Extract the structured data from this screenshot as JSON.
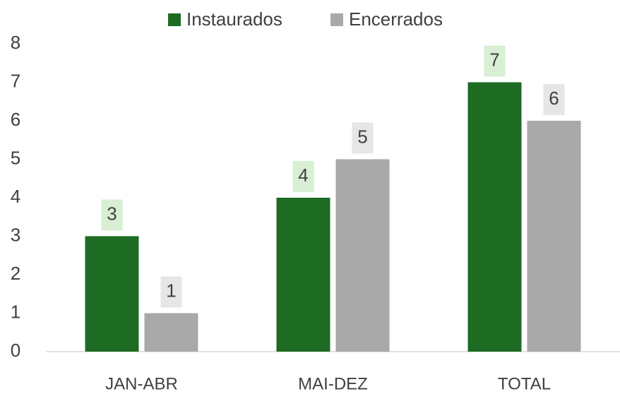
{
  "chart_data": {
    "type": "bar",
    "categories": [
      "JAN-ABR",
      "MAI-DEZ",
      "TOTAL"
    ],
    "series": [
      {
        "name": "Instaurados",
        "color": "#1e6b23",
        "label_bg": "#d8efd3",
        "values": [
          3,
          4,
          7
        ]
      },
      {
        "name": "Encerrados",
        "color": "#a9a9a9",
        "label_bg": "#e6e6e6",
        "values": [
          1,
          5,
          6
        ]
      }
    ],
    "ylim": [
      0,
      8
    ],
    "yticks": [
      0,
      1,
      2,
      3,
      4,
      5,
      6,
      7,
      8
    ],
    "grid": false,
    "legend": "top"
  }
}
